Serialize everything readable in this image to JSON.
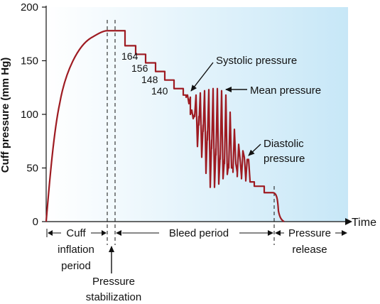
{
  "chart_data": {
    "type": "line",
    "ylabel": "Cuff pressure (mm Hg)",
    "xlabel": "Time",
    "ylim": [
      0,
      200
    ],
    "yticks": [
      0,
      50,
      100,
      150,
      200
    ],
    "grid": false,
    "background_gradient": [
      "#ffffff",
      "#c7e7f7"
    ],
    "line_color": "#9e1b22",
    "step_labels": [
      {
        "text": "164",
        "value": 164
      },
      {
        "text": "156",
        "value": 156
      },
      {
        "text": "148",
        "value": 148
      },
      {
        "text": "140",
        "value": 140
      }
    ],
    "annotations": {
      "systolic": "Systolic pressure",
      "mean": "Mean pressure",
      "diastolic_1": "Diastolic",
      "diastolic_2": "pressure"
    },
    "phases": {
      "cuff_1": "Cuff",
      "cuff_2": "inflation",
      "cuff_3": "period",
      "stab_1": "Pressure",
      "stab_2": "stabilization",
      "bleed": "Bleed period",
      "release_1": "Pressure",
      "release_2": "release"
    }
  }
}
